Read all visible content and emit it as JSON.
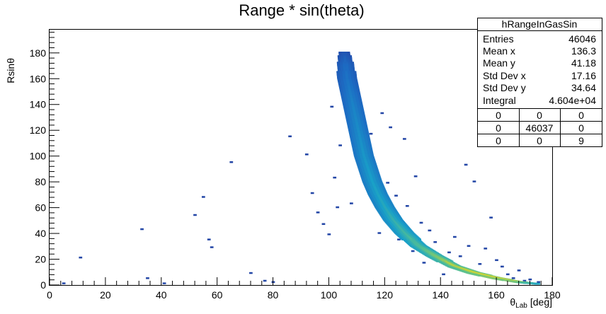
{
  "chart_data": {
    "type": "heatmap",
    "title": "Range * sin(theta)",
    "xlabel": "θ",
    "xlabel_sub": "Lab",
    "xlabel_unit": "[deg]",
    "ylabel": "Rsinθ",
    "xlim": [
      0,
      180
    ],
    "ylim": [
      0,
      198
    ],
    "x_ticks": [
      0,
      20,
      40,
      60,
      80,
      100,
      120,
      140,
      160,
      180
    ],
    "y_ticks": [
      0,
      20,
      40,
      60,
      80,
      100,
      120,
      140,
      160,
      180
    ],
    "grid": false,
    "band": [
      {
        "x": 105.5,
        "y": 180,
        "w": 4,
        "i": 0.12
      },
      {
        "x": 106,
        "y": 170,
        "w": 6,
        "i": 0.2
      },
      {
        "x": 106.5,
        "y": 160,
        "w": 7,
        "i": 0.22
      },
      {
        "x": 107.5,
        "y": 150,
        "w": 7,
        "i": 0.25
      },
      {
        "x": 108.5,
        "y": 140,
        "w": 7,
        "i": 0.28
      },
      {
        "x": 109.5,
        "y": 130,
        "w": 7,
        "i": 0.3
      },
      {
        "x": 110.5,
        "y": 120,
        "w": 7,
        "i": 0.32
      },
      {
        "x": 111.5,
        "y": 110,
        "w": 7,
        "i": 0.34
      },
      {
        "x": 112.5,
        "y": 100,
        "w": 7,
        "i": 0.36
      },
      {
        "x": 114,
        "y": 90,
        "w": 7,
        "i": 0.38
      },
      {
        "x": 115.5,
        "y": 80,
        "w": 7,
        "i": 0.4
      },
      {
        "x": 117.5,
        "y": 70,
        "w": 7,
        "i": 0.42
      },
      {
        "x": 120,
        "y": 60,
        "w": 7,
        "i": 0.45
      },
      {
        "x": 123,
        "y": 50,
        "w": 7,
        "i": 0.5
      },
      {
        "x": 127,
        "y": 40,
        "w": 7,
        "i": 0.55
      },
      {
        "x": 132,
        "y": 30,
        "w": 6,
        "i": 0.62
      },
      {
        "x": 138,
        "y": 22,
        "w": 6,
        "i": 0.72
      },
      {
        "x": 145,
        "y": 14,
        "w": 5,
        "i": 0.82
      },
      {
        "x": 152,
        "y": 9,
        "w": 5,
        "i": 0.9
      },
      {
        "x": 160,
        "y": 5,
        "w": 4,
        "i": 0.95
      },
      {
        "x": 168,
        "y": 2,
        "w": 3,
        "i": 0.85
      },
      {
        "x": 175,
        "y": 0.5,
        "w": 2,
        "i": 0.5
      }
    ],
    "scatter_points": [
      [
        5,
        1
      ],
      [
        11,
        21
      ],
      [
        33,
        43
      ],
      [
        35,
        5
      ],
      [
        41,
        1
      ],
      [
        52,
        54
      ],
      [
        55,
        68
      ],
      [
        57,
        35
      ],
      [
        58,
        29
      ],
      [
        65,
        95
      ],
      [
        72,
        9
      ],
      [
        77,
        3
      ],
      [
        80,
        2
      ],
      [
        86,
        115
      ],
      [
        92,
        101
      ],
      [
        94,
        71
      ],
      [
        96,
        56
      ],
      [
        98,
        47
      ],
      [
        100,
        39
      ],
      [
        101,
        138
      ],
      [
        102,
        83
      ],
      [
        103,
        60
      ],
      [
        104,
        108
      ],
      [
        108,
        63
      ],
      [
        112,
        128
      ],
      [
        115,
        117
      ],
      [
        118,
        40
      ],
      [
        119,
        133
      ],
      [
        121,
        79
      ],
      [
        122,
        122
      ],
      [
        124,
        69
      ],
      [
        125,
        35
      ],
      [
        127,
        113
      ],
      [
        128,
        61
      ],
      [
        130,
        26
      ],
      [
        131,
        84
      ],
      [
        133,
        48
      ],
      [
        134,
        17
      ],
      [
        136,
        42
      ],
      [
        138,
        33
      ],
      [
        141,
        8
      ],
      [
        143,
        25
      ],
      [
        145,
        37
      ],
      [
        147,
        22
      ],
      [
        149,
        93
      ],
      [
        150,
        30
      ],
      [
        152,
        80
      ],
      [
        154,
        16
      ],
      [
        156,
        28
      ],
      [
        158,
        52
      ],
      [
        160,
        19
      ],
      [
        162,
        14
      ],
      [
        164,
        8
      ],
      [
        166,
        5
      ],
      [
        168,
        11
      ],
      [
        170,
        3
      ],
      [
        172,
        4
      ],
      [
        175,
        2
      ]
    ],
    "stats_box": {
      "title": "hRangeInGasSin",
      "rows": [
        {
          "label": "Entries",
          "value": "46046"
        },
        {
          "label": "Mean x",
          "value": "136.3"
        },
        {
          "label": "Mean y",
          "value": "41.18"
        },
        {
          "label": "Std Dev x",
          "value": "17.16"
        },
        {
          "label": "Std Dev y",
          "value": "34.64"
        },
        {
          "label": "Integral",
          "value": "4.604e+04"
        }
      ],
      "grid": [
        [
          "0",
          "0",
          "0"
        ],
        [
          "0",
          "46037",
          "0"
        ],
        [
          "0",
          "0",
          "9"
        ]
      ]
    }
  }
}
